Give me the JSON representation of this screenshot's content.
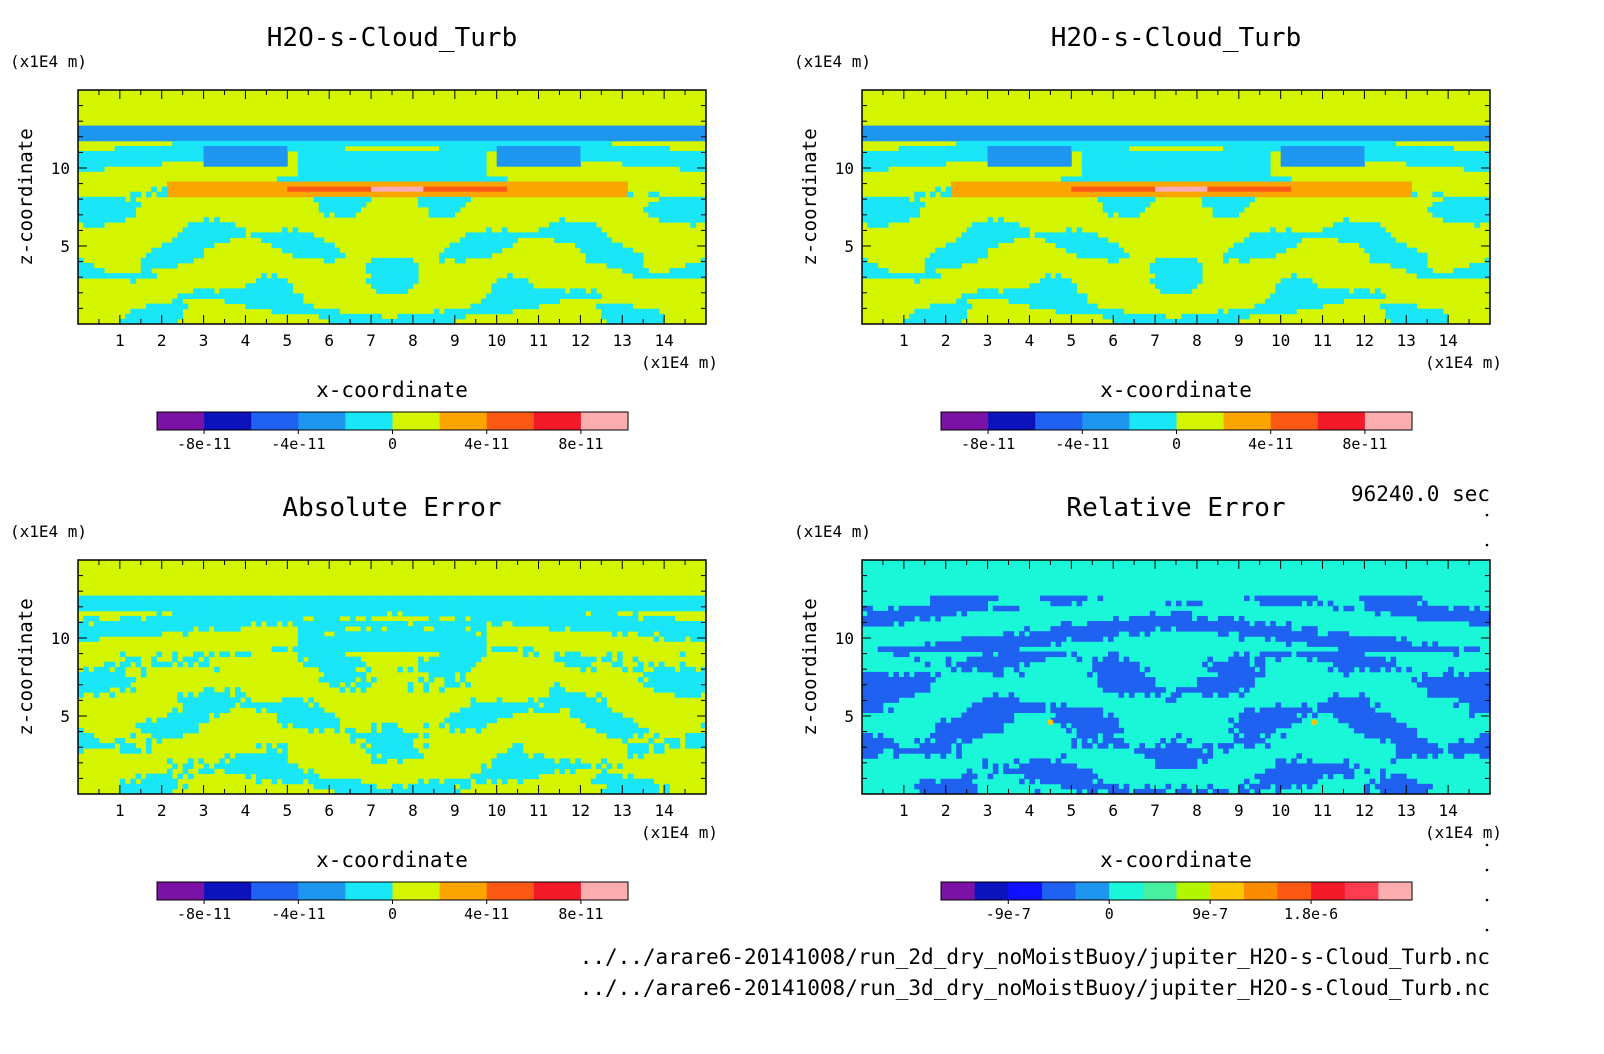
{
  "time_label": "96240.0 sec",
  "footer": {
    "file1": "../../arare6-20141008/run_2d_dry_noMoistBuoy/jupiter_H2O-s-Cloud_Turb.nc",
    "file2": "../../arare6-20141008/run_3d_dry_noMoistBuoy/jupiter_H2O-s-Cloud_Turb.nc"
  },
  "chart_data": [
    {
      "type": "heatmap",
      "title": "H2O-s-Cloud_Turb",
      "xlabel": "x-coordinate",
      "ylabel": "z-coordinate",
      "x_unit": "(x1E4 m)",
      "y_unit": "(x1E4 m)",
      "xlim": [
        0,
        15
      ],
      "ylim": [
        0,
        15
      ],
      "x_ticks": [
        "1",
        "2",
        "3",
        "4",
        "5",
        "6",
        "7",
        "8",
        "9",
        "10",
        "11",
        "12",
        "13",
        "14"
      ],
      "y_ticks": [
        "5",
        "10"
      ],
      "background_level": "0 to 2e-11",
      "dominant_levels": [
        "0 to 2e-11",
        "-2e-11 to 0"
      ],
      "peak_level": "8e-11 to 1e-10",
      "peak_location": {
        "x": 7.6,
        "z": 8.8
      },
      "colorbar": {
        "colors": [
          "#7b12a6",
          "#0c12bc",
          "#1f61f0",
          "#1e96f0",
          "#19e6f6",
          "#d3f500",
          "#fba500",
          "#fc5a14",
          "#f51a28",
          "#fcadb0"
        ],
        "tick_labels": [
          "-8e-11",
          "-4e-11",
          "0",
          "4e-11",
          "8e-11"
        ]
      }
    },
    {
      "type": "heatmap",
      "title": "H2O-s-Cloud_Turb",
      "xlabel": "x-coordinate",
      "ylabel": "z-coordinate",
      "x_unit": "(x1E4 m)",
      "y_unit": "(x1E4 m)",
      "xlim": [
        0,
        15
      ],
      "ylim": [
        0,
        15
      ],
      "x_ticks": [
        "1",
        "2",
        "3",
        "4",
        "5",
        "6",
        "7",
        "8",
        "9",
        "10",
        "11",
        "12",
        "13",
        "14"
      ],
      "y_ticks": [
        "5",
        "10"
      ],
      "background_level": "0 to 2e-11",
      "dominant_levels": [
        "0 to 2e-11",
        "-2e-11 to 0"
      ],
      "peak_level": "8e-11 to 1e-10",
      "peak_location": {
        "x": 7.6,
        "z": 8.8
      },
      "colorbar": {
        "colors": [
          "#7b12a6",
          "#0c12bc",
          "#1f61f0",
          "#1e96f0",
          "#19e6f6",
          "#d3f500",
          "#fba500",
          "#fc5a14",
          "#f51a28",
          "#fcadb0"
        ],
        "tick_labels": [
          "-8e-11",
          "-4e-11",
          "0",
          "4e-11",
          "8e-11"
        ]
      }
    },
    {
      "type": "heatmap",
      "title": "Absolute Error",
      "xlabel": "x-coordinate",
      "ylabel": "z-coordinate",
      "x_unit": "(x1E4 m)",
      "y_unit": "(x1E4 m)",
      "xlim": [
        0,
        15
      ],
      "ylim": [
        0,
        15
      ],
      "x_ticks": [
        "1",
        "2",
        "3",
        "4",
        "5",
        "6",
        "7",
        "8",
        "9",
        "10",
        "11",
        "12",
        "13",
        "14"
      ],
      "y_ticks": [
        "5",
        "10"
      ],
      "background_level": "0 to 2e-11",
      "dominant_levels": [
        "0 to 2e-11",
        "-2e-11 to 0"
      ],
      "colorbar": {
        "colors": [
          "#7b12a6",
          "#0c12bc",
          "#1f61f0",
          "#1e96f0",
          "#19e6f6",
          "#d3f500",
          "#fba500",
          "#fc5a14",
          "#f51a28",
          "#fcadb0"
        ],
        "tick_labels": [
          "-8e-11",
          "-4e-11",
          "0",
          "4e-11",
          "8e-11"
        ]
      }
    },
    {
      "type": "heatmap",
      "title": "Relative Error",
      "xlabel": "x-coordinate",
      "ylabel": "z-coordinate",
      "x_unit": "(x1E4 m)",
      "y_unit": "(x1E4 m)",
      "xlim": [
        0,
        15
      ],
      "ylim": [
        0,
        15
      ],
      "x_ticks": [
        "1",
        "2",
        "3",
        "4",
        "5",
        "6",
        "7",
        "8",
        "9",
        "10",
        "11",
        "12",
        "13",
        "14"
      ],
      "y_ticks": [
        "5",
        "10"
      ],
      "background_level": "0 to 3e-7",
      "dominant_levels": [
        "0 to 3e-7",
        "-3e-7 to 0"
      ],
      "colorbar": {
        "colors": [
          "#7b12a6",
          "#0c12bc",
          "#1010ff",
          "#1f61f0",
          "#1e96f0",
          "#19f6d8",
          "#46f0a0",
          "#b4f500",
          "#fbc800",
          "#fb8c00",
          "#fc5a14",
          "#f51a28",
          "#fc3c50",
          "#fcadb0"
        ],
        "tick_labels": [
          "-9e-7",
          "0",
          "9e-7",
          "1.8e-6"
        ]
      }
    }
  ]
}
